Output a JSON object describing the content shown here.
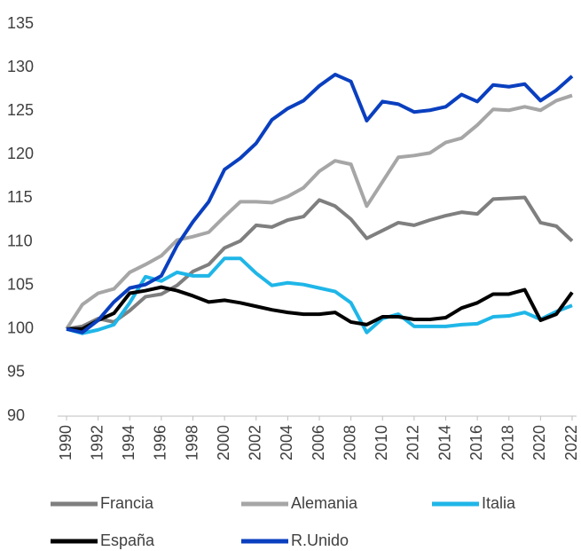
{
  "chart_data": {
    "type": "line",
    "x": [
      1990,
      1991,
      1992,
      1993,
      1994,
      1995,
      1996,
      1997,
      1998,
      1999,
      2000,
      2001,
      2002,
      2003,
      2004,
      2005,
      2006,
      2007,
      2008,
      2009,
      2010,
      2011,
      2012,
      2013,
      2014,
      2015,
      2016,
      2017,
      2018,
      2019,
      2020,
      2021,
      2022
    ],
    "xlim": [
      1990,
      2022
    ],
    "xticks": [
      1990,
      1992,
      1994,
      1996,
      1998,
      2000,
      2002,
      2004,
      2006,
      2008,
      2010,
      2012,
      2014,
      2016,
      2018,
      2020,
      2022
    ],
    "ylim": [
      90,
      135
    ],
    "yticks": [
      90,
      95,
      100,
      105,
      110,
      115,
      120,
      125,
      130,
      135
    ],
    "grid": false,
    "legend": "bottom",
    "series": [
      {
        "name": "Francia",
        "color": "#7f7f7f",
        "values": [
          100,
          100.3,
          101.2,
          100.8,
          102.1,
          103.7,
          104.0,
          105.0,
          106.6,
          107.4,
          109.3,
          110.1,
          111.9,
          111.7,
          112.5,
          112.9,
          114.8,
          114.1,
          112.6,
          110.4,
          111.3,
          112.2,
          111.9,
          112.5,
          113.0,
          113.4,
          113.2,
          114.9,
          115.0,
          115.1,
          112.2,
          111.8,
          110.1
        ]
      },
      {
        "name": "Alemania",
        "color": "#a6a6a6",
        "values": [
          100,
          102.8,
          104.1,
          104.6,
          106.5,
          107.4,
          108.4,
          110.2,
          110.6,
          111.1,
          112.9,
          114.6,
          114.6,
          114.5,
          115.2,
          116.2,
          118.1,
          119.3,
          118.9,
          114.1,
          116.9,
          119.7,
          119.9,
          120.2,
          121.4,
          121.9,
          123.4,
          125.2,
          125.1,
          125.5,
          125.1,
          126.2,
          126.8
        ]
      },
      {
        "name": "Italia",
        "color": "#1fb6e8",
        "values": [
          100,
          99.5,
          99.9,
          100.5,
          103.0,
          106.0,
          105.5,
          106.5,
          106.1,
          106.1,
          108.1,
          108.1,
          106.4,
          105.0,
          105.3,
          105.1,
          104.7,
          104.3,
          103.0,
          99.6,
          101.2,
          101.7,
          100.3,
          100.3,
          100.3,
          100.5,
          100.6,
          101.4,
          101.5,
          101.9,
          101.1,
          102.0,
          102.7
        ]
      },
      {
        "name": "España",
        "color": "#000000",
        "values": [
          100,
          100.0,
          101.0,
          101.8,
          104.1,
          104.4,
          104.8,
          104.4,
          103.8,
          103.1,
          103.3,
          103.0,
          102.6,
          102.2,
          101.9,
          101.7,
          101.7,
          101.9,
          100.8,
          100.5,
          101.4,
          101.4,
          101.1,
          101.1,
          101.3,
          102.4,
          103.0,
          104.0,
          104.0,
          104.5,
          101.0,
          101.7,
          104.2
        ]
      },
      {
        "name": "R.Unido",
        "color": "#0a3fbf",
        "values": [
          100,
          99.6,
          101.0,
          103.1,
          104.7,
          105.1,
          106.1,
          109.6,
          112.3,
          114.6,
          118.3,
          119.6,
          121.3,
          124.0,
          125.3,
          126.2,
          127.9,
          129.2,
          128.4,
          123.9,
          126.1,
          125.8,
          124.9,
          125.1,
          125.5,
          126.9,
          126.1,
          128.0,
          127.8,
          128.1,
          126.2,
          127.4,
          129.0
        ]
      }
    ]
  }
}
